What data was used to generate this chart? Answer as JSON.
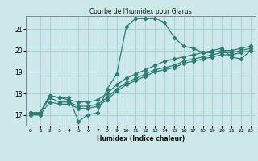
{
  "title": "Courbe de l'humidex pour Glarus",
  "xlabel": "Humidex (Indice chaleur)",
  "bg_color": "#cce8ea",
  "grid_color": "#a0cdd0",
  "line_color": "#2e7d73",
  "xlim": [
    -0.5,
    23.5
  ],
  "ylim": [
    16.5,
    21.6
  ],
  "yticks": [
    17,
    18,
    19,
    20,
    21
  ],
  "xticks": [
    0,
    1,
    2,
    3,
    4,
    5,
    6,
    7,
    8,
    9,
    10,
    11,
    12,
    13,
    14,
    15,
    16,
    17,
    18,
    19,
    20,
    21,
    22,
    23
  ],
  "curve1_x": [
    0,
    1,
    2,
    3,
    4,
    5,
    6,
    7,
    8,
    9,
    10,
    11,
    12,
    13,
    14,
    15,
    16,
    17,
    18,
    19,
    20,
    21,
    22,
    23
  ],
  "curve1_y": [
    17.1,
    17.1,
    17.9,
    17.8,
    17.8,
    16.7,
    17.0,
    17.1,
    18.2,
    18.9,
    21.1,
    21.5,
    21.5,
    21.5,
    21.3,
    20.6,
    20.2,
    20.1,
    19.9,
    20.0,
    20.1,
    19.7,
    19.6,
    20.0
  ],
  "curve2_x": [
    0,
    1,
    2,
    3,
    4,
    5,
    6,
    7,
    8,
    9,
    10,
    11,
    12,
    13,
    14,
    15,
    16,
    17,
    18,
    19,
    20,
    21,
    22,
    23
  ],
  "curve2_y": [
    17.1,
    17.1,
    17.9,
    17.8,
    17.7,
    17.6,
    17.6,
    17.7,
    18.0,
    18.4,
    18.7,
    18.9,
    19.1,
    19.3,
    19.5,
    19.6,
    19.7,
    19.8,
    19.9,
    19.9,
    20.0,
    20.0,
    20.1,
    20.2
  ],
  "curve3_x": [
    0,
    1,
    2,
    3,
    4,
    5,
    6,
    7,
    8,
    9,
    10,
    11,
    12,
    13,
    14,
    15,
    16,
    17,
    18,
    19,
    20,
    21,
    22,
    23
  ],
  "curve3_y": [
    17.1,
    17.1,
    17.8,
    17.6,
    17.6,
    17.4,
    17.4,
    17.5,
    17.8,
    18.2,
    18.5,
    18.7,
    18.9,
    19.1,
    19.2,
    19.3,
    19.5,
    19.6,
    19.7,
    19.8,
    19.9,
    19.9,
    20.0,
    20.1
  ],
  "curve4_x": [
    0,
    1,
    2,
    3,
    4,
    5,
    6,
    7,
    8,
    9,
    10,
    11,
    12,
    13,
    14,
    15,
    16,
    17,
    18,
    19,
    20,
    21,
    22,
    23
  ],
  "curve4_y": [
    17.0,
    17.0,
    17.6,
    17.5,
    17.5,
    17.3,
    17.3,
    17.4,
    17.7,
    18.1,
    18.4,
    18.6,
    18.8,
    19.0,
    19.1,
    19.2,
    19.4,
    19.5,
    19.6,
    19.7,
    19.8,
    19.8,
    19.9,
    20.0
  ]
}
